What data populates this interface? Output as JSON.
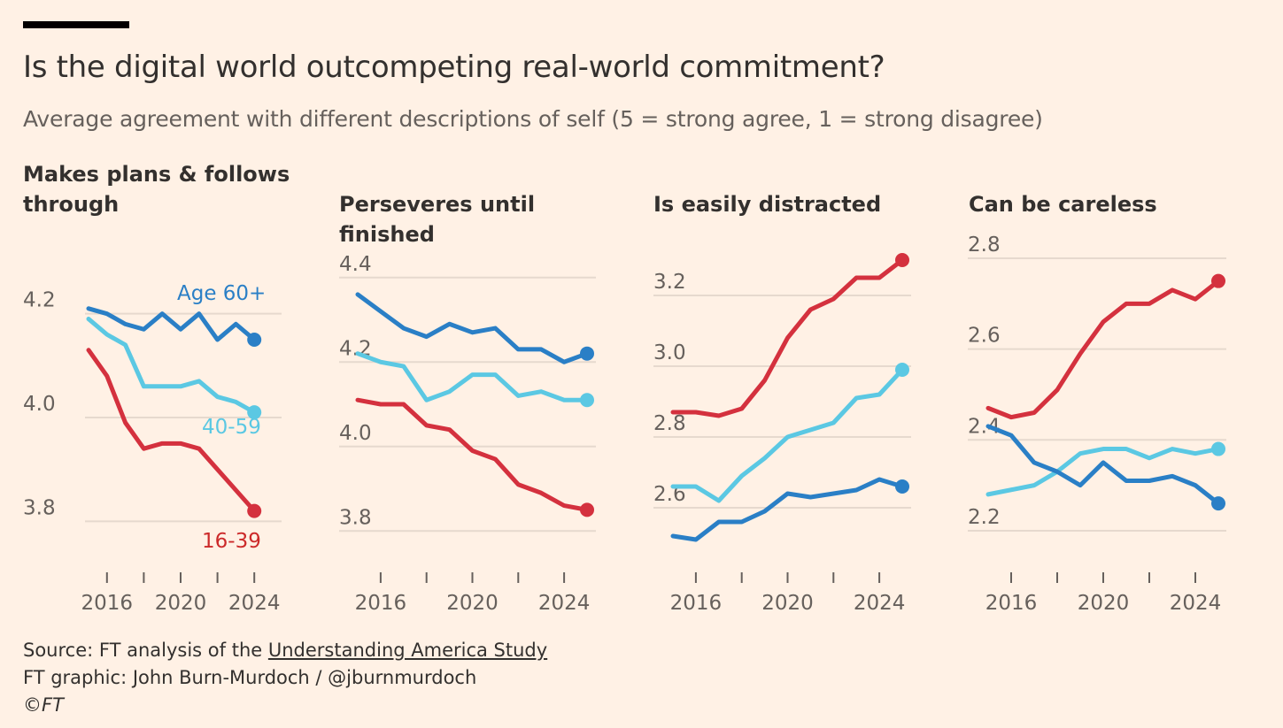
{
  "header": {
    "title": "Is the digital world outcompeting real-world commitment?",
    "subtitle": "Average agreement with different descriptions of self (5 = strong agree, 1 = strong disagree)"
  },
  "footer": {
    "source_prefix": "Source: FT analysis of the ",
    "source_link": "Understanding America Study",
    "credit": "FT graphic: John Burn-Murdoch / @jburnmurdoch",
    "copyright": "©FT"
  },
  "colors": {
    "age_16_39": "#D4313E",
    "age_40_59": "#5BC8E3",
    "age_60_plus": "#2A7FC6",
    "label_16_39": "#CC2A2A",
    "grid": "#E6D9CE",
    "axis_text": "#66605C"
  },
  "chart_data": [
    {
      "type": "line",
      "title": "Makes plans & follows through",
      "x": [
        2015,
        2016,
        2017,
        2018,
        2019,
        2020,
        2021,
        2022,
        2023,
        2024,
        2025
      ],
      "xticks": [
        2016,
        2020,
        2024
      ],
      "yticks": [
        3.8,
        4.0,
        4.2
      ],
      "ylim": [
        3.7,
        4.3
      ],
      "series": [
        {
          "name": "16-39",
          "label": "16-39",
          "values": [
            4.13,
            4.08,
            3.99,
            3.94,
            3.95,
            3.95,
            3.94,
            3.9,
            3.86,
            3.82,
            null
          ]
        },
        {
          "name": "40-59",
          "label": "40-59",
          "values": [
            4.19,
            4.16,
            4.14,
            4.06,
            4.06,
            4.06,
            4.07,
            4.04,
            4.03,
            4.01,
            null
          ]
        },
        {
          "name": "Age 60+",
          "label": "Age 60+",
          "values": [
            4.21,
            4.2,
            4.18,
            4.17,
            4.2,
            4.17,
            4.2,
            4.15,
            4.18,
            4.15,
            null
          ]
        }
      ]
    },
    {
      "type": "line",
      "title": "Perseveres until finished",
      "x": [
        2015,
        2016,
        2017,
        2018,
        2019,
        2020,
        2021,
        2022,
        2023,
        2024,
        2025
      ],
      "xticks": [
        2016,
        2020,
        2024
      ],
      "yticks": [
        3.8,
        4.0,
        4.2,
        4.4
      ],
      "ylim": [
        3.7,
        4.5
      ],
      "series": [
        {
          "name": "16-39",
          "values": [
            4.11,
            4.1,
            4.1,
            4.05,
            4.04,
            3.99,
            3.97,
            3.91,
            3.89,
            3.86,
            3.85
          ]
        },
        {
          "name": "40-59",
          "values": [
            4.22,
            4.2,
            4.19,
            4.11,
            4.13,
            4.17,
            4.17,
            4.12,
            4.13,
            4.11,
            4.11
          ]
        },
        {
          "name": "Age 60+",
          "values": [
            4.36,
            4.32,
            4.28,
            4.26,
            4.29,
            4.27,
            4.28,
            4.23,
            4.23,
            4.2,
            4.22
          ]
        }
      ]
    },
    {
      "type": "line",
      "title": "Is easily distracted",
      "x": [
        2015,
        2016,
        2017,
        2018,
        2019,
        2020,
        2021,
        2022,
        2023,
        2024,
        2025
      ],
      "xticks": [
        2016,
        2020,
        2024
      ],
      "yticks": [
        2.6,
        2.8,
        3.0,
        3.2
      ],
      "ylim": [
        2.45,
        3.3
      ],
      "series": [
        {
          "name": "16-39",
          "values": [
            2.87,
            2.87,
            2.86,
            2.88,
            2.96,
            3.08,
            3.16,
            3.19,
            3.25,
            3.25,
            3.3
          ]
        },
        {
          "name": "40-59",
          "values": [
            2.66,
            2.66,
            2.62,
            2.69,
            2.74,
            2.8,
            2.82,
            2.84,
            2.91,
            2.92,
            2.99
          ]
        },
        {
          "name": "Age 60+",
          "values": [
            2.52,
            2.51,
            2.56,
            2.56,
            2.59,
            2.64,
            2.63,
            2.64,
            2.65,
            2.68,
            2.66
          ]
        }
      ]
    },
    {
      "type": "line",
      "title": "Can be careless",
      "x": [
        2015,
        2016,
        2017,
        2018,
        2019,
        2020,
        2021,
        2022,
        2023,
        2024,
        2025
      ],
      "xticks": [
        2016,
        2020,
        2024
      ],
      "yticks": [
        2.2,
        2.4,
        2.6,
        2.8
      ],
      "ylim": [
        2.12,
        2.8
      ],
      "series": [
        {
          "name": "16-39",
          "values": [
            2.47,
            2.45,
            2.46,
            2.51,
            2.59,
            2.66,
            2.7,
            2.7,
            2.73,
            2.71,
            2.75
          ]
        },
        {
          "name": "40-59",
          "values": [
            2.28,
            2.29,
            2.3,
            2.33,
            2.37,
            2.38,
            2.38,
            2.36,
            2.38,
            2.37,
            2.38
          ]
        },
        {
          "name": "Age 60+",
          "values": [
            2.43,
            2.41,
            2.35,
            2.33,
            2.3,
            2.35,
            2.31,
            2.31,
            2.32,
            2.3,
            2.26
          ]
        }
      ]
    }
  ]
}
